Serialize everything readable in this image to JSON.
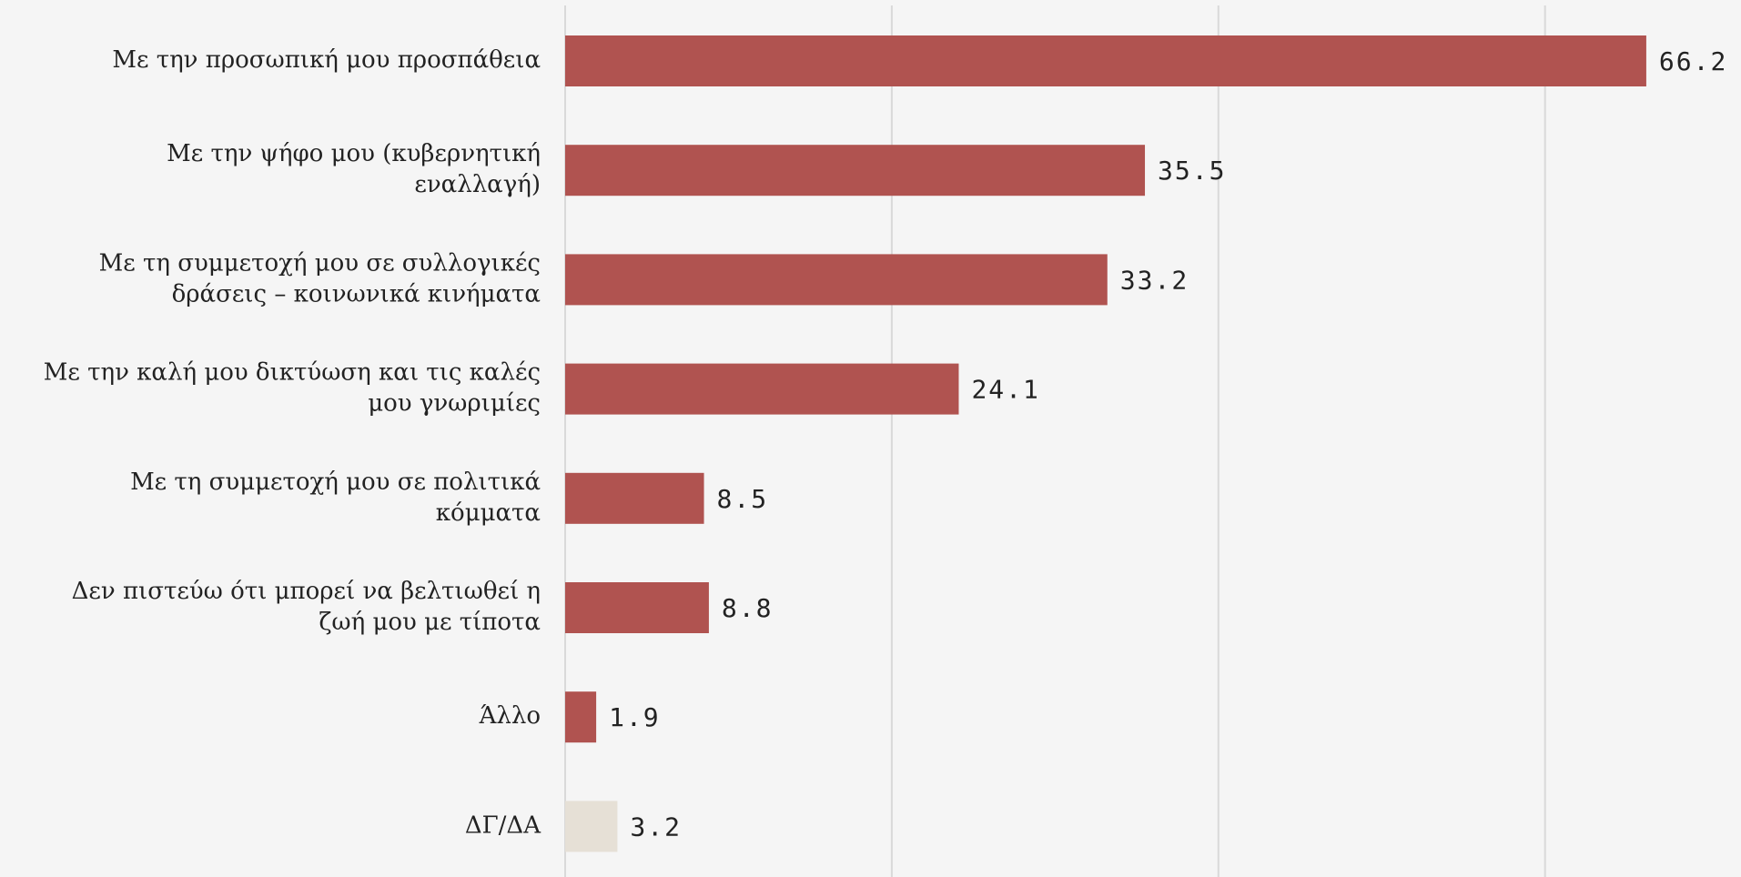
{
  "chart_data": {
    "type": "barh",
    "categories": [
      [
        "Με την προσωπική μου προσπάθεια"
      ],
      [
        "Με την ψήφο μου (κυβερνητική",
        "εναλλαγή)"
      ],
      [
        "Με τη συμμετοχή μου σε συλλογικές",
        "δράσεις – κοινωνικά κινήματα"
      ],
      [
        "Με την καλή μου δικτύωση και τις καλές",
        "μου γνωριμίες"
      ],
      [
        "Με τη συμμετοχή μου σε πολιτικά",
        "κόμματα"
      ],
      [
        "Δεν πιστεύω ότι μπορεί να βελτιωθεί η",
        "ζωή μου με τίποτα"
      ],
      [
        "Άλλο"
      ],
      [
        "ΔΓ/ΔΑ"
      ]
    ],
    "values": [
      66.2,
      35.5,
      33.2,
      24.1,
      8.5,
      8.8,
      1.9,
      3.2
    ],
    "colors": [
      "#b05350",
      "#b05350",
      "#b05350",
      "#b05350",
      "#b05350",
      "#b05350",
      "#b05350",
      "#e6e0d6"
    ],
    "xlim": [
      0,
      72
    ],
    "xticks": [
      0,
      20,
      40,
      60
    ],
    "grid": true
  }
}
